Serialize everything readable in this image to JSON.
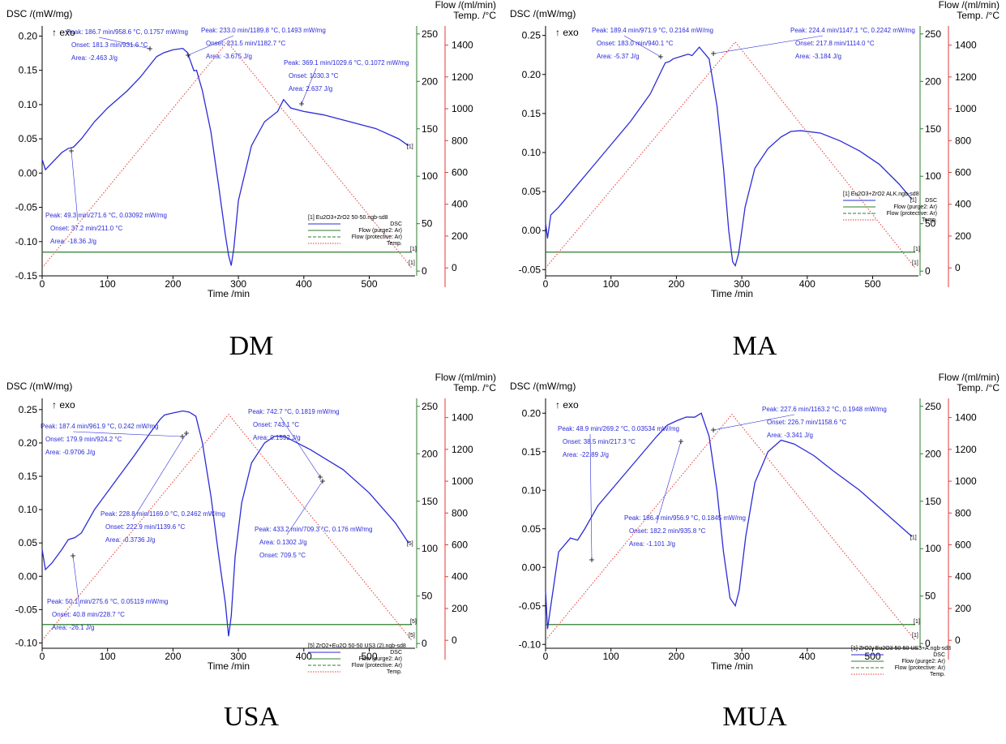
{
  "axes_text": {
    "dsc_label": "DSC /(mW/mg)",
    "exo": "↑ exo",
    "flow_label": "Flow /(ml/min)",
    "temp_label": "Temp. /°C",
    "time_label": "Time /min"
  },
  "colors": {
    "dsc": "#2b2bd8",
    "flow": "#2e7d2e",
    "temp": "#e53935",
    "text": "#2b2bd8"
  },
  "chart_data": [
    {
      "type": "line",
      "caption": "DM",
      "xlim": [
        0,
        570
      ],
      "ylim_dsc": [
        -0.15,
        0.21
      ],
      "ylim_flow": [
        -5,
        255
      ],
      "ylim_temp": [
        -50,
        1500
      ],
      "x_ticks": [
        0,
        100,
        200,
        300,
        400,
        500
      ],
      "dsc_ticks": [
        -0.15,
        -0.1,
        -0.05,
        0.0,
        0.05,
        0.1,
        0.15,
        0.2
      ],
      "dsc_tick_labels": [
        "-0.15",
        "-0.10",
        "-0.05",
        "0.00",
        "0.05",
        "0.10",
        "0.15",
        "0.20"
      ],
      "flow_ticks": [
        0,
        50,
        100,
        150,
        200,
        250
      ],
      "temp_ticks": [
        0,
        200,
        400,
        600,
        800,
        1000,
        1200,
        1400
      ],
      "series": [
        {
          "name": "DSC",
          "x": [
            0,
            5,
            15,
            30,
            40,
            48,
            60,
            80,
            100,
            130,
            150,
            175,
            186,
            200,
            215,
            222,
            232,
            236,
            245,
            258,
            270,
            280,
            285,
            289,
            293,
            300,
            320,
            340,
            360,
            369,
            380,
            400,
            430,
            470,
            510,
            545,
            560
          ],
          "y": [
            0.02,
            0.005,
            0.015,
            0.03,
            0.036,
            0.038,
            0.05,
            0.075,
            0.095,
            0.12,
            0.14,
            0.17,
            0.1757,
            0.18,
            0.182,
            0.176,
            0.1493,
            0.15,
            0.12,
            0.06,
            -0.02,
            -0.09,
            -0.12,
            -0.135,
            -0.11,
            -0.04,
            0.04,
            0.075,
            0.09,
            0.1072,
            0.095,
            0.09,
            0.085,
            0.075,
            0.065,
            0.05,
            0.04
          ]
        },
        {
          "name": "Flow (purge2: Ar)",
          "x": [
            0,
            565
          ],
          "y": [
            20,
            20
          ]
        },
        {
          "name": "Flow (protective: Ar)",
          "x": [
            0,
            565
          ],
          "y": [
            20,
            20
          ]
        },
        {
          "name": "Temp.",
          "x": [
            0,
            283,
            565
          ],
          "y": [
            0,
            1420,
            0
          ]
        }
      ],
      "legend": [
        "[1] Eu2O3+ZrO2 50-50.ngb-sd8",
        "DSC",
        "Flow (purge2: Ar)",
        "Flow (protective: Ar)",
        "Temp."
      ],
      "end_markers": [
        "[1]",
        "[1]",
        "[1]"
      ],
      "annotations": [
        {
          "lines": [
            "Peak: 186.7 min/958.6 °C, 0.1757 mW/mg",
            "Onset: 181.3 min/931.6 °C",
            "Area: -2.463 J/g"
          ]
        },
        {
          "lines": [
            "Peak: 233.0 min/1189.8 °C, 0.1493 mW/mg",
            "Onset: 231.5 min/1182.7 °C",
            "Area: -3.675 J/g"
          ]
        },
        {
          "lines": [
            "Peak: 369.1 min/1029.6 °C, 0.1072 mW/mg",
            "Onset: 1030.3 °C",
            "Area: 2.637 J/g"
          ]
        },
        {
          "lines": [
            "Peak: 49.3 min/271.6 °C, 0.03092 mW/mg",
            "Onset: 37.2 min/211.0 °C",
            "Area: -18.36 J/g"
          ]
        }
      ]
    },
    {
      "type": "line",
      "caption": "MA",
      "xlim": [
        0,
        570
      ],
      "ylim_dsc": [
        -0.058,
        0.258
      ],
      "ylim_flow": [
        -5,
        255
      ],
      "ylim_temp": [
        -50,
        1500
      ],
      "x_ticks": [
        0,
        100,
        200,
        300,
        400,
        500
      ],
      "dsc_ticks": [
        -0.05,
        0.0,
        0.05,
        0.1,
        0.15,
        0.2,
        0.25
      ],
      "dsc_tick_labels": [
        "-0.05",
        "0.00",
        "0.05",
        "0.10",
        "0.15",
        "0.20",
        "0.25"
      ],
      "flow_ticks": [
        0,
        50,
        100,
        150,
        200,
        250
      ],
      "temp_ticks": [
        0,
        200,
        400,
        600,
        800,
        1000,
        1200,
        1400
      ],
      "series": [
        {
          "name": "DSC",
          "x": [
            0,
            3,
            8,
            20,
            40,
            70,
            100,
            130,
            160,
            183,
            189,
            195,
            210,
            218,
            224,
            235,
            250,
            262,
            272,
            280,
            286,
            290,
            295,
            305,
            320,
            340,
            360,
            375,
            390,
            420,
            450,
            480,
            510,
            540,
            560
          ],
          "y": [
            0.01,
            -0.01,
            0.02,
            0.03,
            0.05,
            0.08,
            0.11,
            0.14,
            0.175,
            0.215,
            0.2164,
            0.22,
            0.224,
            0.226,
            0.2242,
            0.235,
            0.22,
            0.16,
            0.08,
            0.0,
            -0.04,
            -0.045,
            -0.03,
            0.03,
            0.08,
            0.105,
            0.12,
            0.127,
            0.128,
            0.125,
            0.115,
            0.102,
            0.085,
            0.06,
            0.04
          ]
        },
        {
          "name": "Flow (purge2: Ar)",
          "x": [
            0,
            565
          ],
          "y": [
            20,
            20
          ]
        },
        {
          "name": "Flow (protective: Ar)",
          "x": [
            0,
            565
          ],
          "y": [
            20,
            20
          ]
        },
        {
          "name": "Temp.",
          "x": [
            0,
            290,
            565
          ],
          "y": [
            0,
            1420,
            0
          ]
        }
      ],
      "legend": [
        "[1] Eu2O3+ZrO2 ALK.ngb-sd8",
        "DSC",
        "Flow (purge2: Ar)",
        "Flow (protective: Ar)",
        "Temp."
      ],
      "end_markers": [
        "[1]",
        "[1]",
        "[1]"
      ],
      "annotations": [
        {
          "lines": [
            "Peak: 189.4 min/971.9 °C, 0.2164 mW/mg",
            "Onset: 183.0 min/940.1 °C",
            "Area: -5.37 J/g"
          ]
        },
        {
          "lines": [
            "Peak: 224.4 min/1147.1 °C, 0.2242 mW/mg",
            "Onset: 217.8 min/1114.0 °C",
            "Area: -3.184 J/g"
          ]
        }
      ]
    },
    {
      "type": "line",
      "caption": "USA",
      "xlim": [
        0,
        570
      ],
      "ylim_dsc": [
        -0.108,
        0.262
      ],
      "ylim_flow": [
        -5,
        255
      ],
      "ylim_temp": [
        -50,
        1500
      ],
      "x_ticks": [
        0,
        100,
        200,
        300,
        400,
        500
      ],
      "dsc_ticks": [
        -0.1,
        -0.05,
        0.0,
        0.05,
        0.1,
        0.15,
        0.2,
        0.25
      ],
      "dsc_tick_labels": [
        "-0.10",
        "-0.05",
        "0.00",
        "0.05",
        "0.10",
        "0.15",
        "0.20",
        "0.25"
      ],
      "flow_ticks": [
        0,
        50,
        100,
        150,
        200,
        250
      ],
      "temp_ticks": [
        0,
        200,
        400,
        600,
        800,
        1000,
        1200,
        1400
      ],
      "series": [
        {
          "name": "DSC",
          "x": [
            0,
            5,
            15,
            30,
            40,
            50,
            60,
            80,
            110,
            140,
            165,
            180,
            187,
            200,
            215,
            225,
            235,
            245,
            258,
            270,
            280,
            285,
            289,
            295,
            305,
            320,
            340,
            355,
            370,
            390,
            410,
            430,
            460,
            500,
            540,
            560
          ],
          "y": [
            0.04,
            0.01,
            0.02,
            0.04,
            0.055,
            0.058,
            0.065,
            0.1,
            0.14,
            0.18,
            0.215,
            0.235,
            0.242,
            0.245,
            0.248,
            0.2462,
            0.24,
            0.2,
            0.12,
            0.03,
            -0.04,
            -0.09,
            -0.06,
            0.03,
            0.11,
            0.17,
            0.2,
            0.21,
            0.21,
            0.2,
            0.19,
            0.178,
            0.16,
            0.125,
            0.08,
            0.05
          ]
        },
        {
          "name": "Flow (purge2: Ar)",
          "x": [
            0,
            565
          ],
          "y": [
            20,
            20
          ]
        },
        {
          "name": "Flow (protective: Ar)",
          "x": [
            0,
            565
          ],
          "y": [
            20,
            20
          ]
        },
        {
          "name": "Temp.",
          "x": [
            0,
            285,
            565
          ],
          "y": [
            0,
            1420,
            0
          ]
        }
      ],
      "legend": [
        "[5] ZrO2+Eu2O 50-50 US3 (2).ngb-sd8",
        "DSC",
        "Flow (purge2: Ar)",
        "Flow (protective: Ar)",
        "Temp."
      ],
      "end_markers": [
        "[5]",
        "[5]",
        "[5]"
      ],
      "annotations": [
        {
          "lines": [
            "Peak: 187.4 min/961.9 °C, 0.242 mW/mg",
            "Onset: 179.9 min/924.2 °C",
            "Area: -0.9706 J/g"
          ]
        },
        {
          "lines": [
            "Peak: 742.7 °C, 0.1819 mW/mg",
            "Onset: 743.1 °C",
            "Area: 0.1592 J/g"
          ]
        },
        {
          "lines": [
            "Peak: 228.8 min/1169.0 °C, 0.2462 mW/mg",
            "Onset: 222.9 min/1139.6 °C",
            "Area: -0.3736 J/g"
          ]
        },
        {
          "lines": [
            "Peak: 433.2 min/709.3 °C, 0.176 mW/mg",
            "Area: 0.1302 J/g",
            "Onset: 709.5 °C"
          ]
        },
        {
          "lines": [
            "Peak: 50.1 min/275.6 °C, 0.05119 mW/mg",
            "Onset: 40.8 min/228.7 °C",
            "Area: -26.1 J/g"
          ]
        }
      ]
    },
    {
      "type": "line",
      "caption": "MUA",
      "xlim": [
        0,
        570
      ],
      "ylim_dsc": [
        -0.105,
        0.215
      ],
      "ylim_flow": [
        -5,
        255
      ],
      "ylim_temp": [
        -50,
        1500
      ],
      "x_ticks": [
        0,
        100,
        200,
        300,
        400,
        500
      ],
      "dsc_ticks": [
        -0.1,
        -0.05,
        0.0,
        0.05,
        0.1,
        0.15,
        0.2
      ],
      "dsc_tick_labels": [
        "-0.10",
        "-0.05",
        "0.00",
        "0.05",
        "0.10",
        "0.15",
        "0.20"
      ],
      "flow_ticks": [
        0,
        50,
        100,
        150,
        200,
        250
      ],
      "temp_ticks": [
        0,
        200,
        400,
        600,
        800,
        1000,
        1200,
        1400
      ],
      "series": [
        {
          "name": "DSC",
          "x": [
            0,
            3,
            8,
            20,
            38,
            49,
            60,
            80,
            110,
            140,
            170,
            186,
            200,
            215,
            228,
            238,
            250,
            262,
            272,
            282,
            290,
            296,
            306,
            320,
            340,
            360,
            380,
            410,
            440,
            480,
            520,
            560
          ],
          "y": [
            -0.03,
            -0.08,
            -0.05,
            0.02,
            0.038,
            0.0353,
            0.05,
            0.08,
            0.11,
            0.14,
            0.17,
            0.1845,
            0.19,
            0.195,
            0.1948,
            0.2,
            0.17,
            0.1,
            0.02,
            -0.04,
            -0.05,
            -0.03,
            0.04,
            0.11,
            0.15,
            0.165,
            0.16,
            0.145,
            0.125,
            0.1,
            0.07,
            0.04
          ]
        },
        {
          "name": "Flow (purge2: Ar)",
          "x": [
            0,
            565
          ],
          "y": [
            20,
            20
          ]
        },
        {
          "name": "Flow (protective: Ar)",
          "x": [
            0,
            565
          ],
          "y": [
            20,
            20
          ]
        },
        {
          "name": "Temp.",
          "x": [
            0,
            285,
            565
          ],
          "y": [
            0,
            1420,
            0
          ]
        }
      ],
      "legend": [
        "[1] ZrO2+Eu2O3 50-50 US3+A.ngb-sd8",
        "DSC",
        "Flow (purge2: Ar)",
        "Flow (protective: Ar)",
        "Temp."
      ],
      "end_markers": [
        "[1]",
        "[1]",
        "[1]"
      ],
      "annotations": [
        {
          "lines": [
            "Peak: 227.6 min/1163.2 °C, 0.1948 mW/mg",
            "Onset: 226.7 min/1158.6 °C",
            "Area: -3.341 J/g"
          ]
        },
        {
          "lines": [
            "Peak: 48.9 min/269.2 °C, 0.03534 mW/mg",
            "Onset: 38.5 min/217.3 °C",
            "Area: -22.89 J/g"
          ]
        },
        {
          "lines": [
            "Peak: 186.4 min/956.9 °C, 0.1845 mW/mg",
            "Onset: 182.2 min/935.8 °C",
            "Area: -1.101 J/g"
          ]
        }
      ]
    }
  ]
}
